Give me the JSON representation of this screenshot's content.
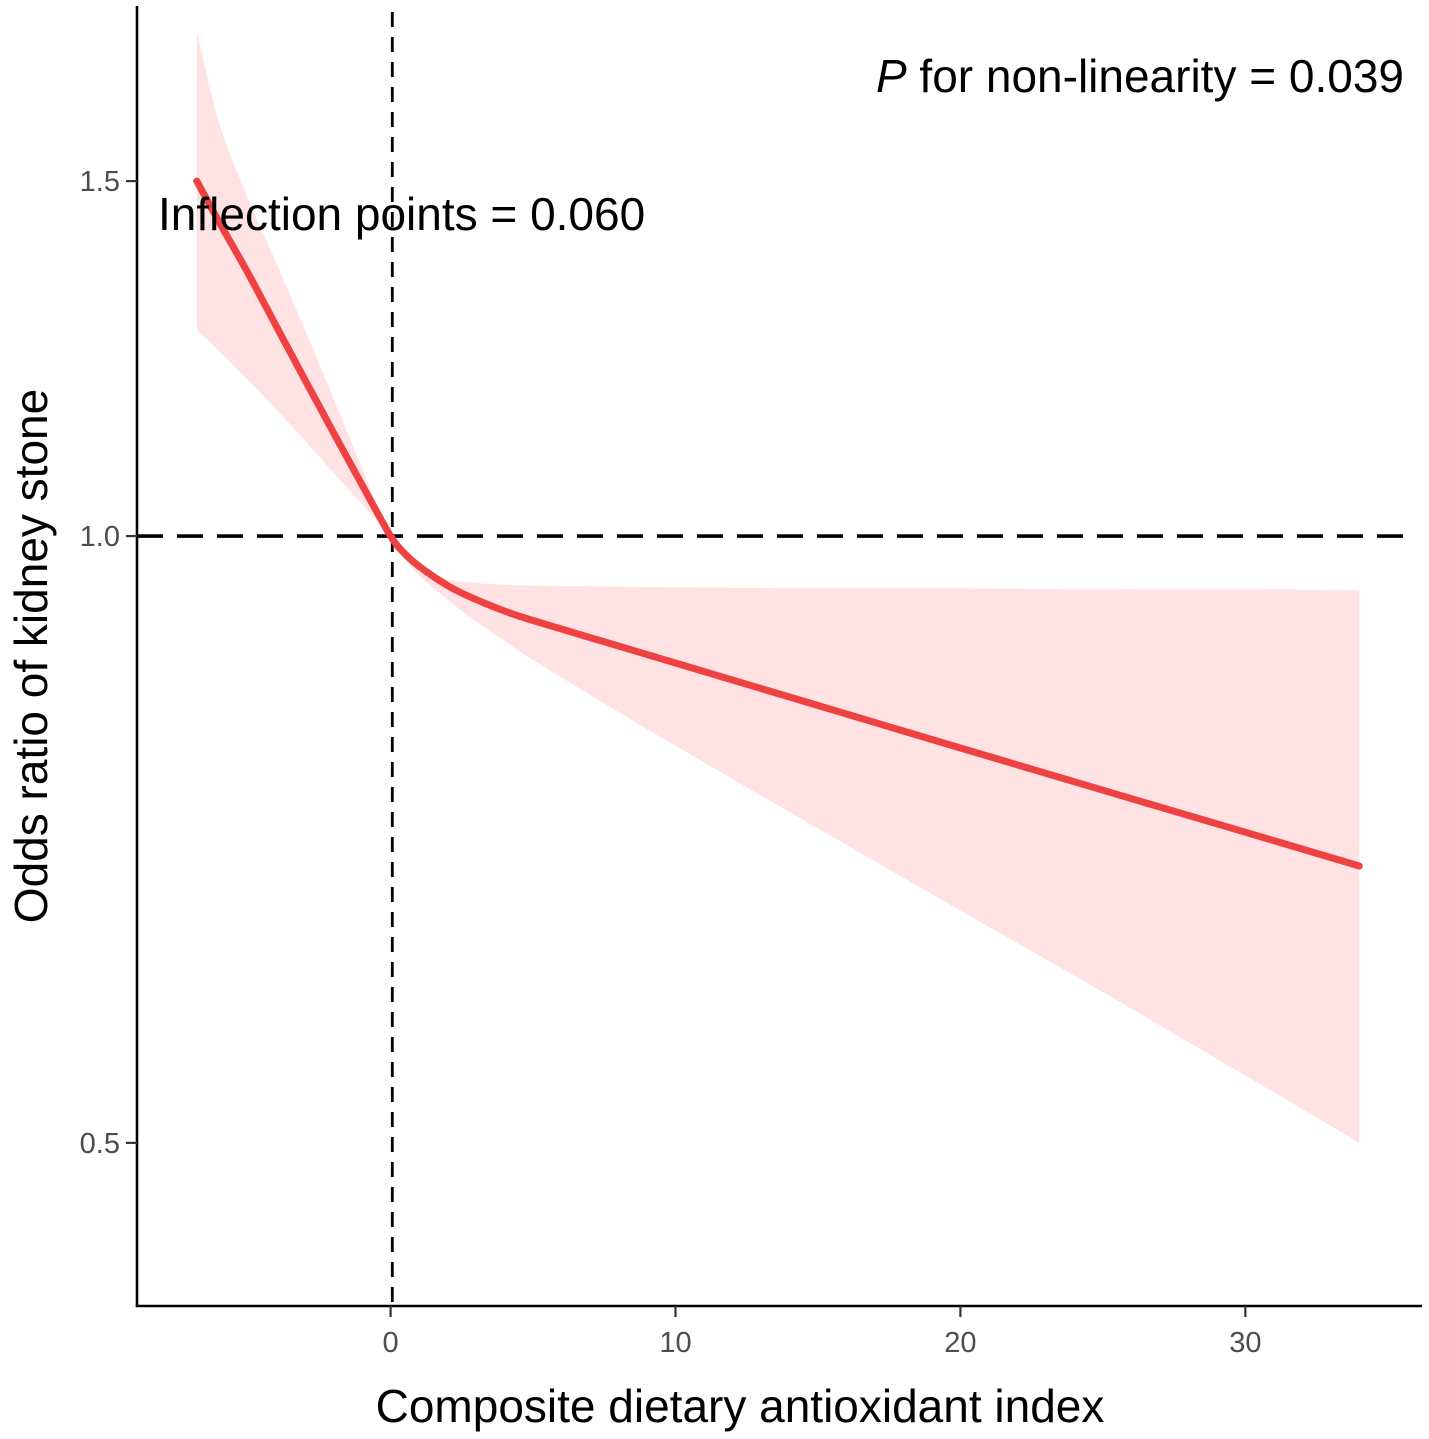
{
  "chart_data": {
    "type": "line",
    "title": "",
    "xlabel": "Composite dietary antioxidant index",
    "ylabel": "Odds ratio of  kidney stone",
    "xlim": [
      -8.9,
      36.2
    ],
    "ylim": [
      0.415,
      1.83
    ],
    "x_ticks": [
      0,
      10,
      20,
      30
    ],
    "x_tick_labels": [
      "0",
      "10",
      "20",
      "30"
    ],
    "y_ticks": [
      0.5,
      1.0,
      1.5
    ],
    "y_tick_labels": [
      "0.5",
      "1.0",
      "1.5"
    ],
    "grid": false,
    "reference_lines": {
      "horizontal_y": 1.0,
      "vertical_x": 0.06
    },
    "annotations": {
      "p_symbol": "P",
      "p_text": " for non-linearity = 0.039",
      "inflection_text": "Inflection points = 0.060"
    },
    "series": [
      {
        "name": "Odds ratio",
        "color": "#ee4242",
        "x": [
          -6.8,
          -6,
          -5,
          -4,
          -3,
          -2,
          -1,
          0,
          0.5,
          1,
          2,
          3,
          4,
          5,
          8,
          10,
          15,
          20,
          25,
          30,
          34
        ],
        "y": [
          1.5,
          1.43,
          1.35,
          1.27,
          1.195,
          1.125,
          1.06,
          1.0,
          0.98,
          0.966,
          0.945,
          0.93,
          0.918,
          0.908,
          0.882,
          0.865,
          0.824,
          0.785,
          0.748,
          0.713,
          0.686
        ],
        "lower": [
          1.265,
          1.235,
          1.195,
          1.155,
          1.115,
          1.075,
          1.037,
          1.0,
          0.975,
          0.956,
          0.93,
          0.907,
          0.887,
          0.868,
          0.818,
          0.787,
          0.716,
          0.652,
          0.594,
          0.54,
          0.5
        ],
        "upper": [
          1.78,
          1.6,
          1.47,
          1.365,
          1.265,
          1.17,
          1.08,
          1.0,
          0.983,
          0.968,
          0.952,
          0.948,
          0.946,
          0.945,
          0.944,
          0.943,
          0.942,
          0.942,
          0.941,
          0.941,
          0.94
        ]
      }
    ]
  },
  "colors": {
    "curve": "#ee4242",
    "ci_band": "#ffe2e3",
    "axis": "#000000",
    "tick_label": "#4d4d4d"
  }
}
